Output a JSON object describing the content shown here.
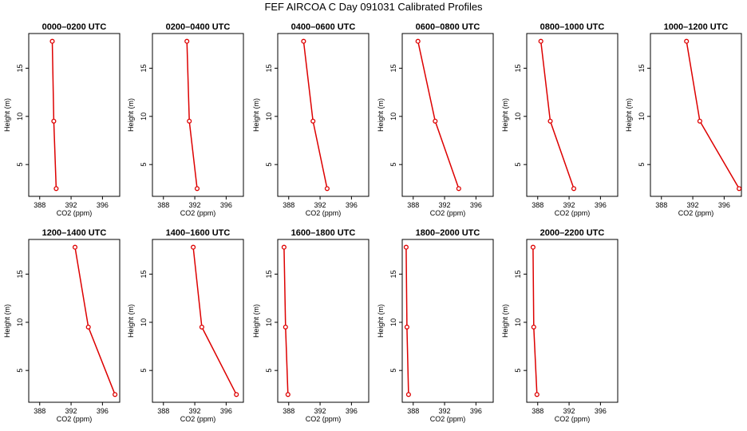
{
  "title": "FEF AIRCOA C  Day 091031  Calibrated Profiles",
  "colors": {
    "series": "#dd0000",
    "axes": "#000000",
    "background": "#ffffff"
  },
  "chart_data": [
    {
      "type": "line",
      "title": "0000–0200 UTC",
      "xlabel": "CO2 (ppm)",
      "ylabel": "Height (m)",
      "xlim": [
        386.6,
        398.2
      ],
      "ylim": [
        1.7,
        18.6
      ],
      "xticks": [
        388,
        392,
        396
      ],
      "yticks": [
        5,
        10,
        15
      ],
      "x": [
        389.6,
        389.8,
        390.1
      ],
      "y": [
        17.8,
        9.5,
        2.5
      ]
    },
    {
      "type": "line",
      "title": "0200–0400 UTC",
      "xlabel": "CO2 (ppm)",
      "ylabel": "Height (m)",
      "xlim": [
        386.6,
        398.2
      ],
      "ylim": [
        1.7,
        18.6
      ],
      "xticks": [
        388,
        392,
        396
      ],
      "yticks": [
        5,
        10,
        15
      ],
      "x": [
        391.0,
        391.3,
        392.3
      ],
      "y": [
        17.8,
        9.5,
        2.5
      ]
    },
    {
      "type": "line",
      "title": "0400–0600 UTC",
      "xlabel": "CO2 (ppm)",
      "ylabel": "Height (m)",
      "xlim": [
        386.6,
        398.2
      ],
      "ylim": [
        1.7,
        18.6
      ],
      "xticks": [
        388,
        392,
        396
      ],
      "yticks": [
        5,
        10,
        15
      ],
      "x": [
        389.9,
        391.1,
        392.9
      ],
      "y": [
        17.8,
        9.5,
        2.5
      ]
    },
    {
      "type": "line",
      "title": "0600–0800 UTC",
      "xlabel": "CO2 (ppm)",
      "ylabel": "Height (m)",
      "xlim": [
        386.6,
        398.2
      ],
      "ylim": [
        1.7,
        18.6
      ],
      "xticks": [
        388,
        392,
        396
      ],
      "yticks": [
        5,
        10,
        15
      ],
      "x": [
        388.6,
        390.8,
        393.8
      ],
      "y": [
        17.8,
        9.5,
        2.5
      ]
    },
    {
      "type": "line",
      "title": "0800–1000 UTC",
      "xlabel": "CO2 (ppm)",
      "ylabel": "Height (m)",
      "xlim": [
        386.6,
        398.2
      ],
      "ylim": [
        1.7,
        18.6
      ],
      "xticks": [
        388,
        392,
        396
      ],
      "yticks": [
        5,
        10,
        15
      ],
      "x": [
        388.4,
        389.6,
        392.6
      ],
      "y": [
        17.8,
        9.5,
        2.5
      ]
    },
    {
      "type": "line",
      "title": "1000–1200 UTC",
      "xlabel": "CO2 (ppm)",
      "ylabel": "Height (m)",
      "xlim": [
        386.6,
        398.2
      ],
      "ylim": [
        1.7,
        18.6
      ],
      "xticks": [
        388,
        392,
        396
      ],
      "yticks": [
        5,
        10,
        15
      ],
      "x": [
        391.2,
        392.9,
        397.9
      ],
      "y": [
        17.8,
        9.5,
        2.5
      ]
    },
    {
      "type": "line",
      "title": "1200–1400 UTC",
      "xlabel": "CO2 (ppm)",
      "ylabel": "Height (m)",
      "xlim": [
        386.6,
        398.2
      ],
      "ylim": [
        1.7,
        18.6
      ],
      "xticks": [
        388,
        392,
        396
      ],
      "yticks": [
        5,
        10,
        15
      ],
      "x": [
        392.5,
        394.2,
        397.6
      ],
      "y": [
        17.8,
        9.5,
        2.5
      ]
    },
    {
      "type": "line",
      "title": "1400–1600 UTC",
      "xlabel": "CO2 (ppm)",
      "ylabel": "Height (m)",
      "xlim": [
        386.6,
        398.2
      ],
      "ylim": [
        1.7,
        18.6
      ],
      "xticks": [
        388,
        392,
        396
      ],
      "yticks": [
        5,
        10,
        15
      ],
      "x": [
        391.8,
        392.9,
        397.3
      ],
      "y": [
        17.8,
        9.5,
        2.5
      ]
    },
    {
      "type": "line",
      "title": "1600–1800 UTC",
      "xlabel": "CO2 (ppm)",
      "ylabel": "Height (m)",
      "xlim": [
        386.6,
        398.2
      ],
      "ylim": [
        1.7,
        18.6
      ],
      "xticks": [
        388,
        392,
        396
      ],
      "yticks": [
        5,
        10,
        15
      ],
      "x": [
        387.4,
        387.6,
        387.9
      ],
      "y": [
        17.8,
        9.5,
        2.5
      ]
    },
    {
      "type": "line",
      "title": "1800–2000 UTC",
      "xlabel": "CO2 (ppm)",
      "ylabel": "Height (m)",
      "xlim": [
        386.6,
        398.2
      ],
      "ylim": [
        1.7,
        18.6
      ],
      "xticks": [
        388,
        392,
        396
      ],
      "yticks": [
        5,
        10,
        15
      ],
      "x": [
        387.1,
        387.2,
        387.4
      ],
      "y": [
        17.8,
        9.5,
        2.5
      ]
    },
    {
      "type": "line",
      "title": "2000–2200 UTC",
      "xlabel": "CO2 (ppm)",
      "ylabel": "Height (m)",
      "xlim": [
        386.6,
        398.2
      ],
      "ylim": [
        1.7,
        18.6
      ],
      "xticks": [
        388,
        392,
        396
      ],
      "yticks": [
        5,
        10,
        15
      ],
      "x": [
        387.4,
        387.5,
        387.9
      ],
      "y": [
        17.8,
        9.5,
        2.5
      ]
    }
  ]
}
